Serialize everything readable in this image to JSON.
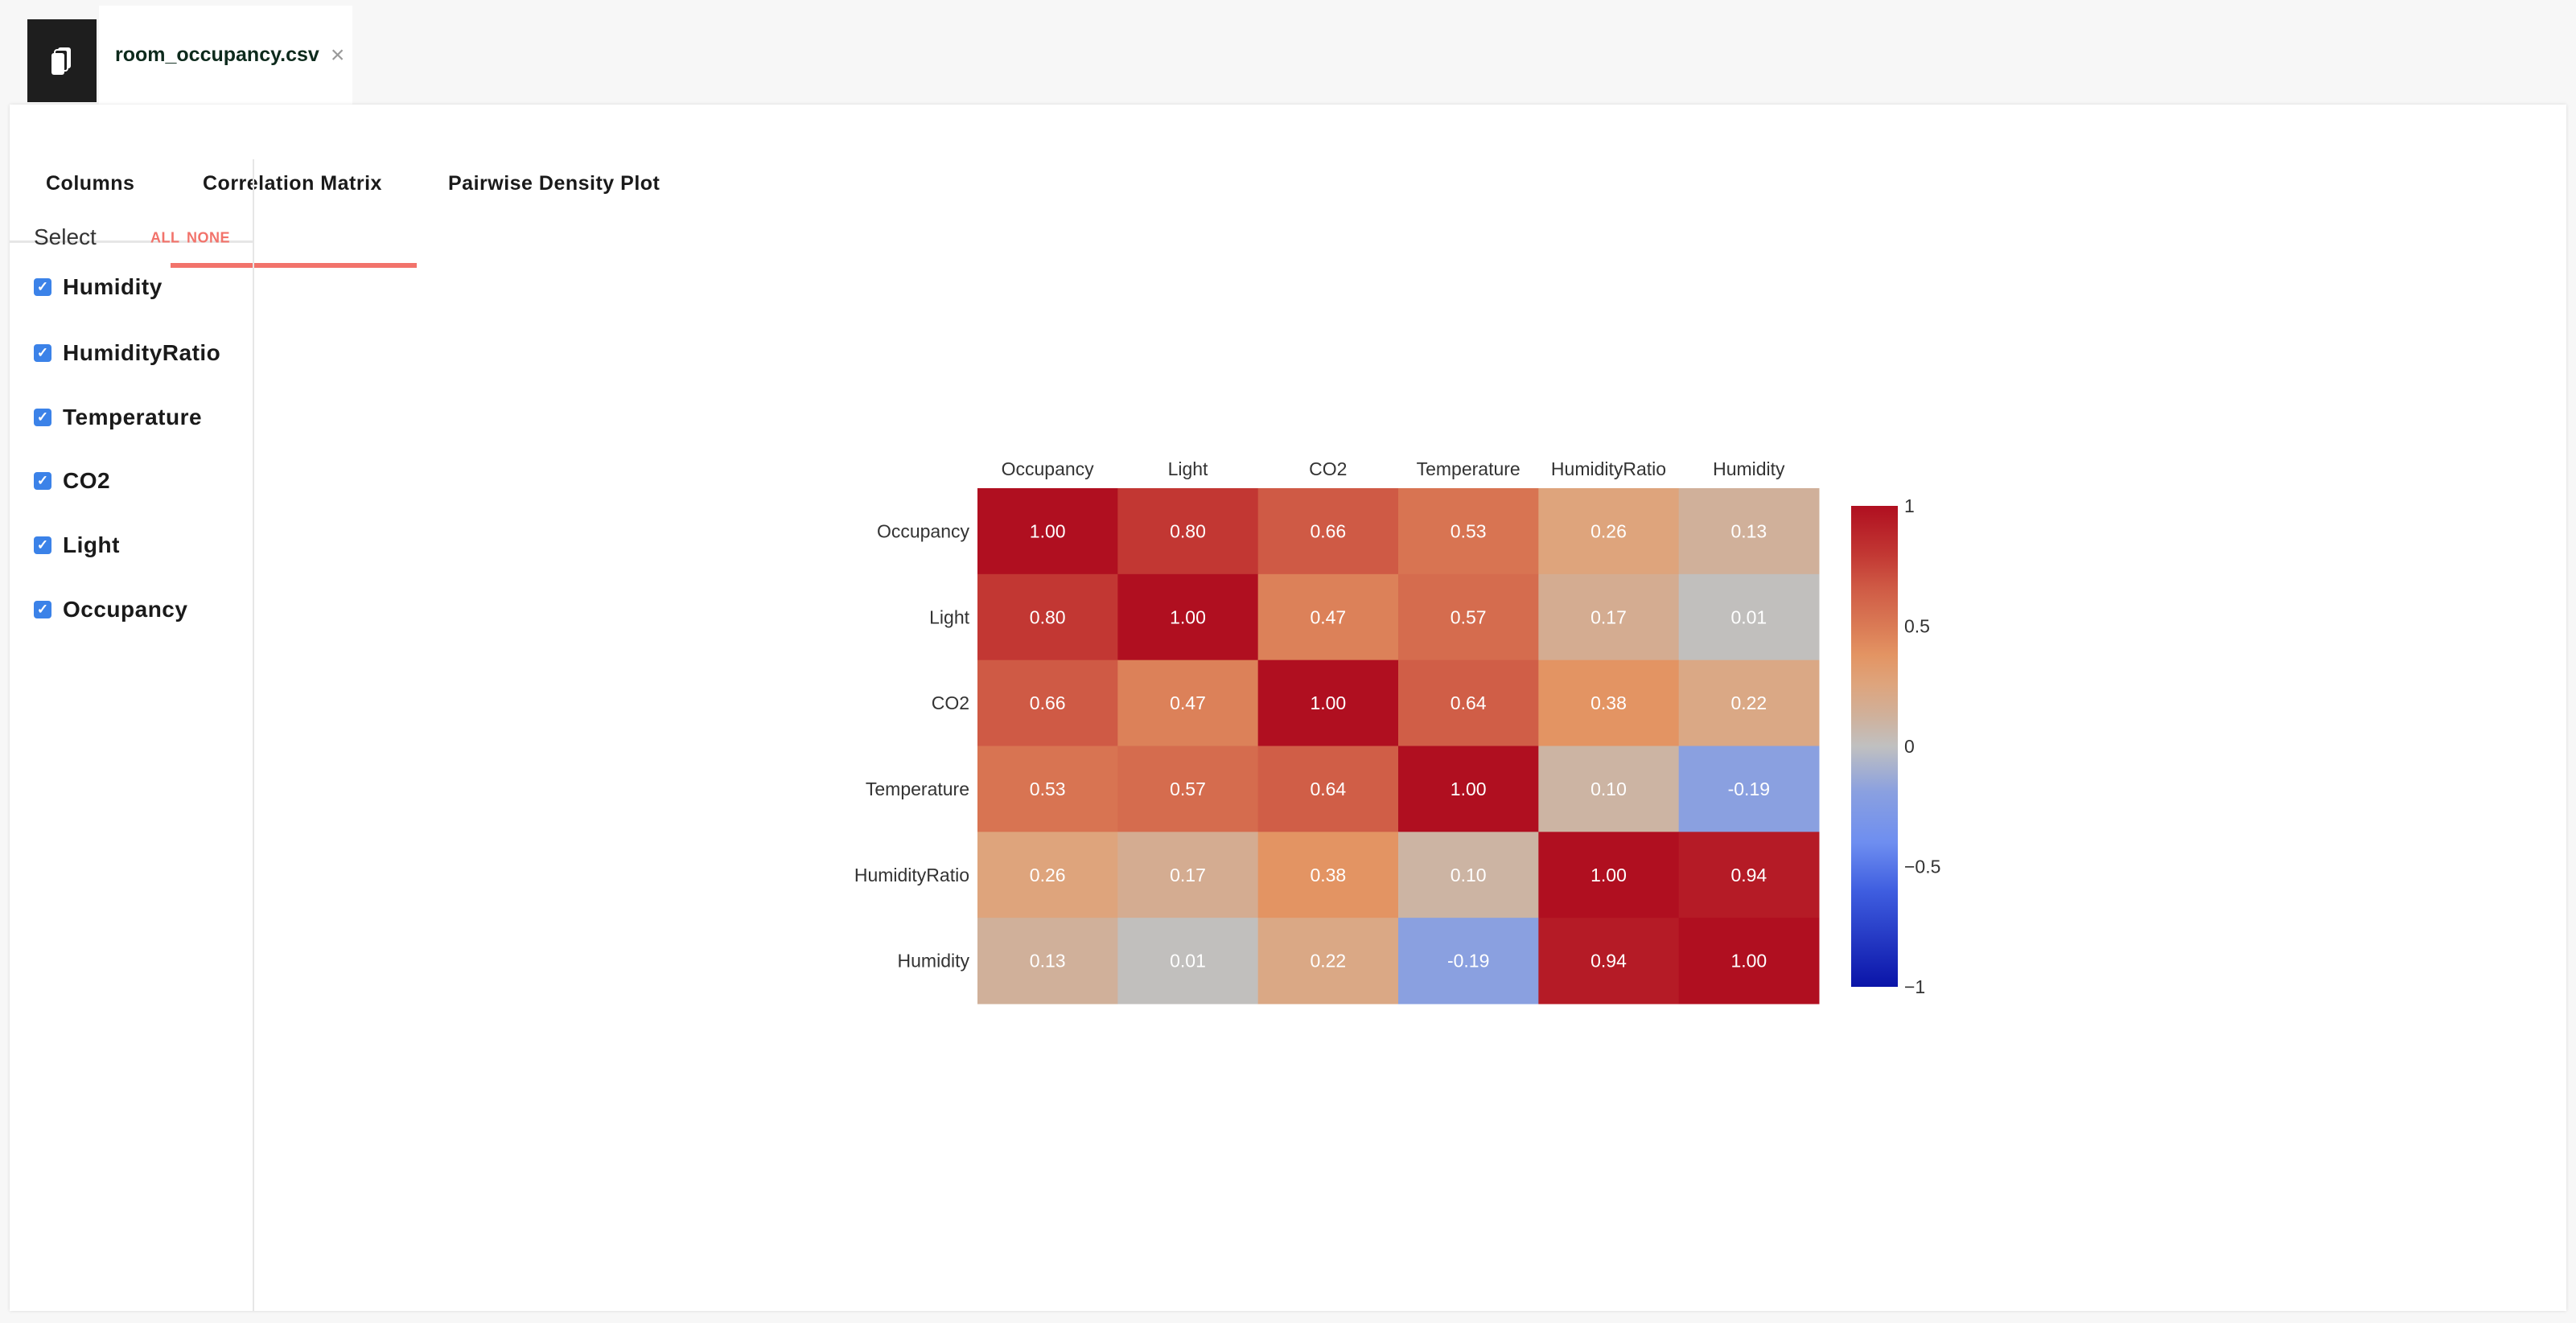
{
  "file_tab": {
    "name": "room_occupancy.csv",
    "close": "×"
  },
  "tabs": [
    {
      "label": "Columns"
    },
    {
      "label": "Correlation Matrix",
      "active": true
    },
    {
      "label": "Pairwise Density Plot"
    }
  ],
  "sidebar": {
    "select_label": "Select",
    "all": "ALL",
    "none": "NONE",
    "items": [
      {
        "label": "Humidity",
        "checked": true
      },
      {
        "label": "HumidityRatio",
        "checked": true
      },
      {
        "label": "Temperature",
        "checked": true
      },
      {
        "label": "CO2",
        "checked": true
      },
      {
        "label": "Light",
        "checked": true
      },
      {
        "label": "Occupancy",
        "checked": true
      }
    ]
  },
  "chart_data": {
    "type": "heatmap",
    "x": [
      "Occupancy",
      "Light",
      "CO2",
      "Temperature",
      "HumidityRatio",
      "Humidity"
    ],
    "y": [
      "Occupancy",
      "Light",
      "CO2",
      "Temperature",
      "HumidityRatio",
      "Humidity"
    ],
    "z": [
      [
        1.0,
        0.8,
        0.66,
        0.53,
        0.26,
        0.13
      ],
      [
        0.8,
        1.0,
        0.47,
        0.57,
        0.17,
        0.01
      ],
      [
        0.66,
        0.47,
        1.0,
        0.64,
        0.38,
        0.22
      ],
      [
        0.53,
        0.57,
        0.64,
        1.0,
        0.1,
        -0.19
      ],
      [
        0.26,
        0.17,
        0.38,
        0.1,
        1.0,
        0.94
      ],
      [
        0.13,
        0.01,
        0.22,
        -0.19,
        0.94,
        1.0
      ]
    ],
    "zlim": [
      -1,
      1
    ],
    "colorbar_ticks": [
      {
        "v": 1,
        "label": "1"
      },
      {
        "v": 0.5,
        "label": "0.5"
      },
      {
        "v": 0,
        "label": "0"
      },
      {
        "v": -0.5,
        "label": "−0.5"
      },
      {
        "v": -1,
        "label": "−1"
      }
    ],
    "colorscale": [
      [
        -1,
        "#0a14a8"
      ],
      [
        -0.6,
        "#3f5ee0"
      ],
      [
        -0.4,
        "#6e8ef0"
      ],
      [
        -0.19,
        "#8aa0e0"
      ],
      [
        0,
        "#c0c0c0"
      ],
      [
        0.13,
        "#d0b09a"
      ],
      [
        0.26,
        "#dea47c"
      ],
      [
        0.38,
        "#e39463"
      ],
      [
        0.5,
        "#da7a55"
      ],
      [
        0.66,
        "#cf5a45"
      ],
      [
        0.8,
        "#c23733"
      ],
      [
        1,
        "#b00f20"
      ]
    ]
  }
}
